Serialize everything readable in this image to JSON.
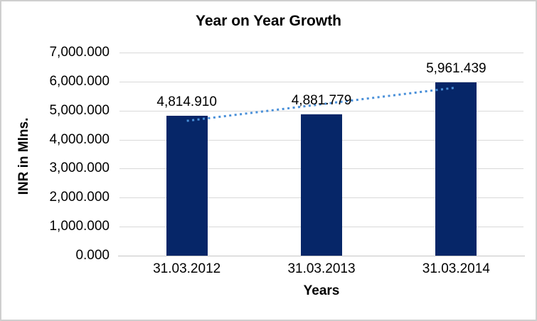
{
  "chart_data": {
    "type": "bar",
    "title": "Year on Year Growth",
    "xlabel": "Years",
    "ylabel": "INR in Mlns.",
    "categories": [
      "31.03.2012",
      "31.03.2013",
      "31.03.2014"
    ],
    "values": [
      4814.91,
      4881.779,
      5961.439
    ],
    "value_labels": [
      "4,814.910",
      "4,881.779",
      "5,961.439"
    ],
    "ylim": [
      0,
      7000
    ],
    "yticks": [
      {
        "value": 0,
        "label": "0.000"
      },
      {
        "value": 1000,
        "label": "1,000.000"
      },
      {
        "value": 2000,
        "label": "2,000.000"
      },
      {
        "value": 3000,
        "label": "3,000.000"
      },
      {
        "value": 4000,
        "label": "4,000.000"
      },
      {
        "value": 5000,
        "label": "5,000.000"
      },
      {
        "value": 6000,
        "label": "6,000.000"
      },
      {
        "value": 7000,
        "label": "7,000.000"
      }
    ],
    "grid": "horizontal",
    "legend": "none",
    "bar_color": "#062668",
    "gridline_color": "#d9d9d9",
    "trendline": {
      "type": "linear",
      "style": "dotted",
      "color": "#4a90d9"
    }
  }
}
